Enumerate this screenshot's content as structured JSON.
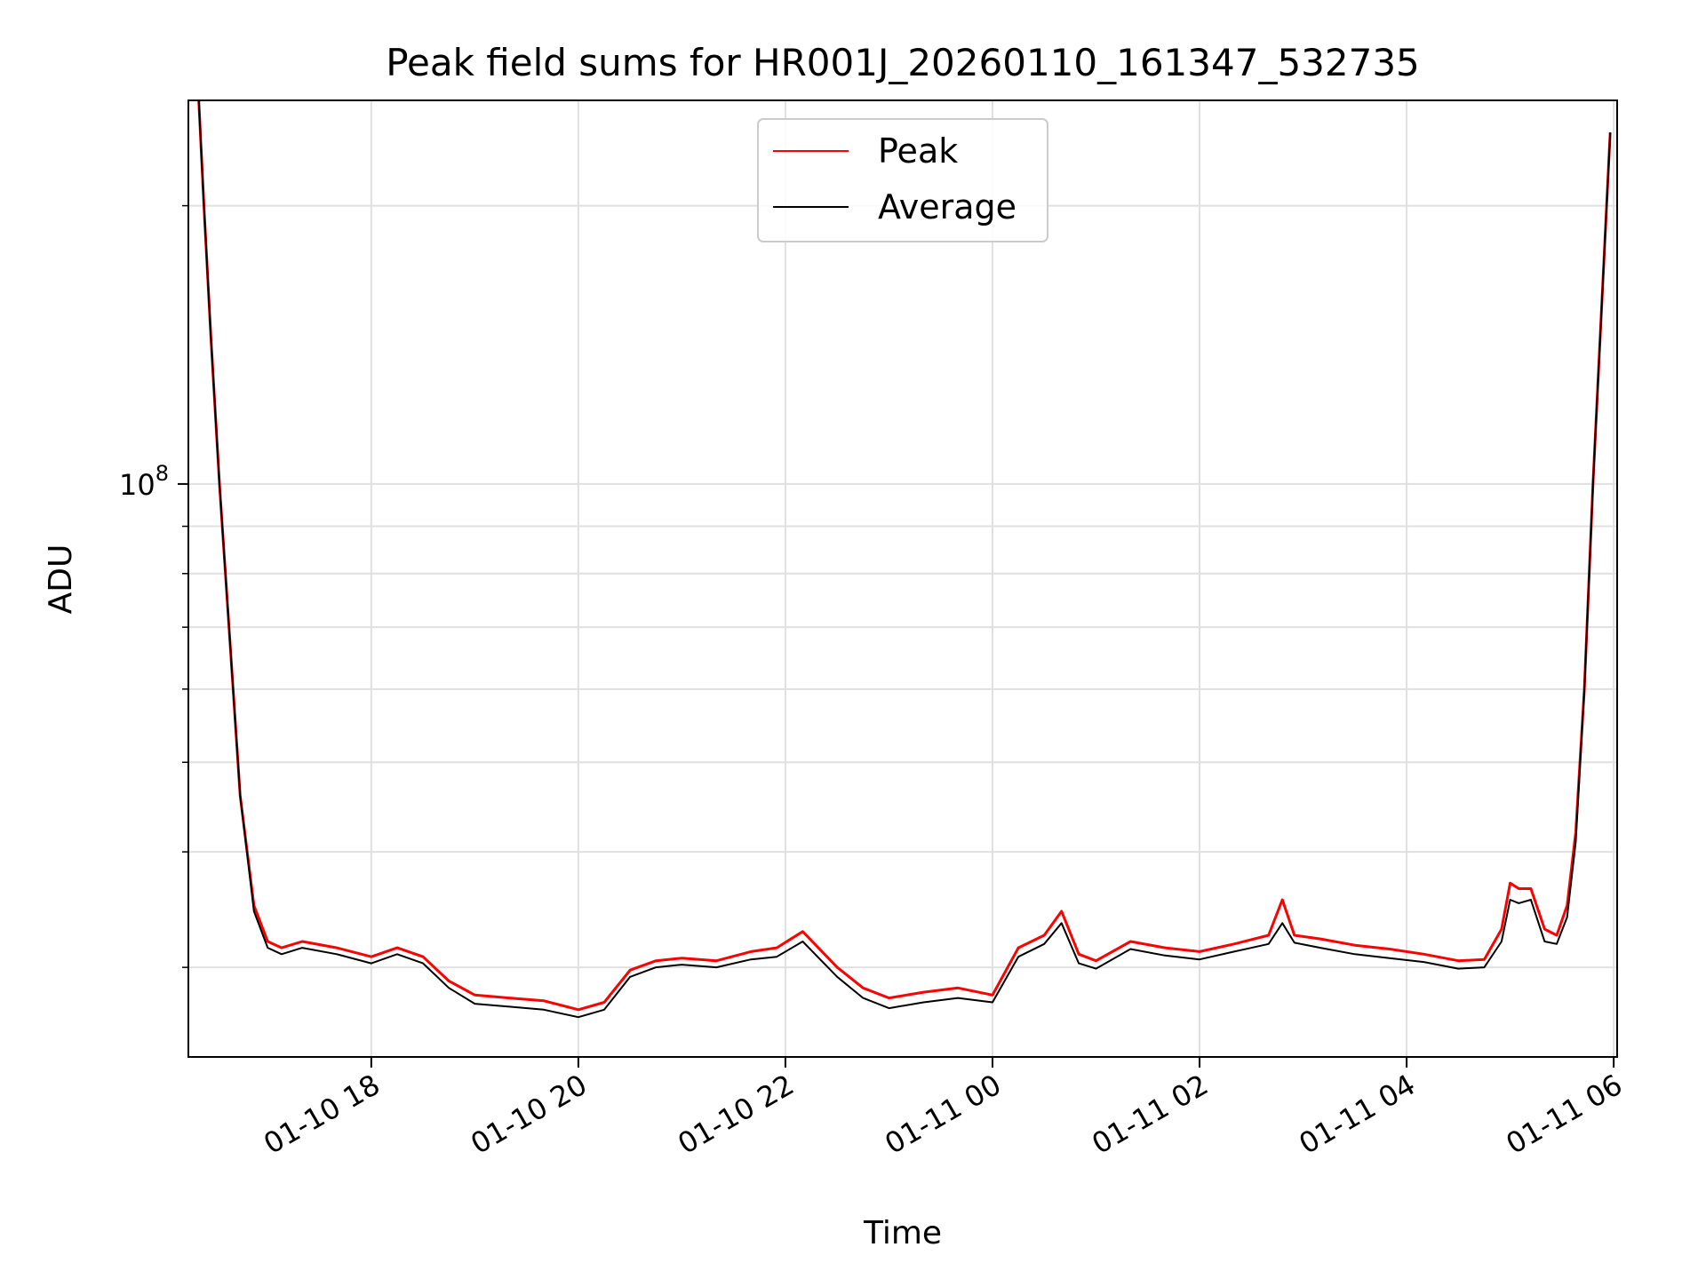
{
  "chart_data": {
    "type": "line",
    "title": "Peak field sums for HR001J_20260110_161347_532735",
    "xlabel": "Time",
    "ylabel": "ADU",
    "y_scale": "log",
    "ylim": [
      24000000,
      260000000
    ],
    "xlim": [
      "2026-01-10 16:14",
      "2026-01-11 06:02"
    ],
    "x_ticks": [
      {
        "t": "2026-01-10 18:00",
        "label": "01-10 18"
      },
      {
        "t": "2026-01-10 20:00",
        "label": "01-10 20"
      },
      {
        "t": "2026-01-10 22:00",
        "label": "01-10 22"
      },
      {
        "t": "2026-01-11 00:00",
        "label": "01-11 00"
      },
      {
        "t": "2026-01-11 02:00",
        "label": "01-11 02"
      },
      {
        "t": "2026-01-11 04:00",
        "label": "01-11 04"
      },
      {
        "t": "2026-01-11 06:00",
        "label": "01-11 06"
      }
    ],
    "y_ticks_major": [
      {
        "v": 100000000,
        "base": "10",
        "exp": "8"
      }
    ],
    "y_ticks_minor": [
      30000000,
      40000000,
      50000000,
      60000000,
      70000000,
      80000000,
      90000000,
      200000000
    ],
    "grid": true,
    "legend_position": "top-center",
    "series": [
      {
        "name": "Peak",
        "color": "#ff0000",
        "x": [
          "2026-01-10 16:20",
          "2026-01-10 16:23",
          "2026-01-10 16:27",
          "2026-01-10 16:32",
          "2026-01-10 16:38",
          "2026-01-10 16:44",
          "2026-01-10 16:52",
          "2026-01-10 17:00",
          "2026-01-10 17:08",
          "2026-01-10 17:20",
          "2026-01-10 17:40",
          "2026-01-10 18:00",
          "2026-01-10 18:15",
          "2026-01-10 18:30",
          "2026-01-10 18:45",
          "2026-01-10 19:00",
          "2026-01-10 19:20",
          "2026-01-10 19:40",
          "2026-01-10 20:00",
          "2026-01-10 20:15",
          "2026-01-10 20:30",
          "2026-01-10 20:45",
          "2026-01-10 21:00",
          "2026-01-10 21:20",
          "2026-01-10 21:40",
          "2026-01-10 21:55",
          "2026-01-10 22:10",
          "2026-01-10 22:30",
          "2026-01-10 22:45",
          "2026-01-10 23:00",
          "2026-01-10 23:20",
          "2026-01-10 23:40",
          "2026-01-11 00:00",
          "2026-01-11 00:15",
          "2026-01-11 00:30",
          "2026-01-11 00:40",
          "2026-01-11 00:50",
          "2026-01-11 01:00",
          "2026-01-11 01:20",
          "2026-01-11 01:40",
          "2026-01-11 02:00",
          "2026-01-11 02:20",
          "2026-01-11 02:40",
          "2026-01-11 02:48",
          "2026-01-11 02:55",
          "2026-01-11 03:10",
          "2026-01-11 03:30",
          "2026-01-11 03:50",
          "2026-01-11 04:10",
          "2026-01-11 04:30",
          "2026-01-11 04:45",
          "2026-01-11 04:55",
          "2026-01-11 05:00",
          "2026-01-11 05:05",
          "2026-01-11 05:12",
          "2026-01-11 05:20",
          "2026-01-11 05:27",
          "2026-01-11 05:33",
          "2026-01-11 05:38",
          "2026-01-11 05:43",
          "2026-01-11 05:48",
          "2026-01-11 05:53",
          "2026-01-11 05:58"
        ],
        "y": [
          260000000,
          200000000,
          145000000,
          100000000,
          68000000,
          46000000,
          35000000,
          32000000,
          31500000,
          32000000,
          31500000,
          30800000,
          31500000,
          30800000,
          29000000,
          28000000,
          27800000,
          27600000,
          27000000,
          27500000,
          29800000,
          30500000,
          30700000,
          30500000,
          31200000,
          31500000,
          32800000,
          30000000,
          28500000,
          27800000,
          28200000,
          28500000,
          28000000,
          31500000,
          32500000,
          34500000,
          31000000,
          30500000,
          32000000,
          31500000,
          31200000,
          31800000,
          32500000,
          35500000,
          32500000,
          32200000,
          31700000,
          31400000,
          31000000,
          30500000,
          30600000,
          33000000,
          37000000,
          36500000,
          36500000,
          33000000,
          32500000,
          35000000,
          42000000,
          60000000,
          100000000,
          155000000,
          240000000
        ]
      },
      {
        "name": "Average",
        "color": "#000000",
        "x": [
          "2026-01-10 16:20",
          "2026-01-10 16:23",
          "2026-01-10 16:27",
          "2026-01-10 16:32",
          "2026-01-10 16:38",
          "2026-01-10 16:44",
          "2026-01-10 16:52",
          "2026-01-10 17:00",
          "2026-01-10 17:08",
          "2026-01-10 17:20",
          "2026-01-10 17:40",
          "2026-01-10 18:00",
          "2026-01-10 18:15",
          "2026-01-10 18:30",
          "2026-01-10 18:45",
          "2026-01-10 19:00",
          "2026-01-10 19:20",
          "2026-01-10 19:40",
          "2026-01-10 20:00",
          "2026-01-10 20:15",
          "2026-01-10 20:30",
          "2026-01-10 20:45",
          "2026-01-10 21:00",
          "2026-01-10 21:20",
          "2026-01-10 21:40",
          "2026-01-10 21:55",
          "2026-01-10 22:10",
          "2026-01-10 22:30",
          "2026-01-10 22:45",
          "2026-01-10 23:00",
          "2026-01-10 23:20",
          "2026-01-10 23:40",
          "2026-01-11 00:00",
          "2026-01-11 00:15",
          "2026-01-11 00:30",
          "2026-01-11 00:40",
          "2026-01-11 00:50",
          "2026-01-11 01:00",
          "2026-01-11 01:20",
          "2026-01-11 01:40",
          "2026-01-11 02:00",
          "2026-01-11 02:20",
          "2026-01-11 02:40",
          "2026-01-11 02:48",
          "2026-01-11 02:55",
          "2026-01-11 03:10",
          "2026-01-11 03:30",
          "2026-01-11 03:50",
          "2026-01-11 04:10",
          "2026-01-11 04:30",
          "2026-01-11 04:45",
          "2026-01-11 04:55",
          "2026-01-11 05:00",
          "2026-01-11 05:05",
          "2026-01-11 05:12",
          "2026-01-11 05:20",
          "2026-01-11 05:27",
          "2026-01-11 05:33",
          "2026-01-11 05:38",
          "2026-01-11 05:43",
          "2026-01-11 05:48",
          "2026-01-11 05:53",
          "2026-01-11 05:58"
        ],
        "y": [
          260000000,
          200000000,
          145000000,
          100000000,
          68000000,
          46000000,
          34500000,
          31500000,
          31000000,
          31500000,
          31000000,
          30300000,
          31000000,
          30300000,
          28500000,
          27400000,
          27200000,
          27000000,
          26500000,
          27000000,
          29300000,
          30000000,
          30200000,
          30000000,
          30600000,
          30800000,
          32000000,
          29300000,
          27800000,
          27100000,
          27500000,
          27800000,
          27500000,
          30800000,
          31800000,
          33500000,
          30300000,
          29900000,
          31400000,
          30900000,
          30600000,
          31200000,
          31800000,
          33500000,
          31900000,
          31500000,
          31000000,
          30700000,
          30400000,
          29900000,
          30000000,
          32000000,
          35500000,
          35200000,
          35500000,
          32000000,
          31800000,
          34000000,
          41000000,
          60000000,
          100000000,
          155000000,
          240000000
        ]
      }
    ]
  }
}
